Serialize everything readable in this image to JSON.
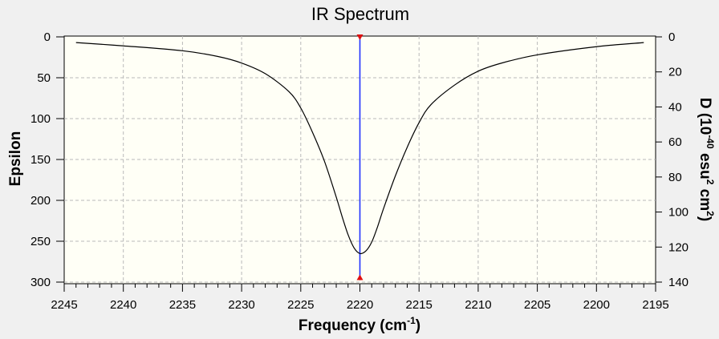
{
  "chart_data": {
    "type": "line",
    "title": "IR Spectrum",
    "xlabel": "Frequency (cm",
    "xlabel_sup": "-1",
    "xlabel_tail": ")",
    "ylabel": "Epsilon",
    "y2label_parts": [
      "D (10",
      "-40",
      " esu",
      "2",
      " cm",
      "2",
      ")"
    ],
    "xlim": [
      2245,
      2195
    ],
    "ylim": [
      0,
      300
    ],
    "y2lim": [
      0,
      140
    ],
    "x_ticks": [
      2245,
      2240,
      2235,
      2230,
      2225,
      2220,
      2215,
      2210,
      2205,
      2200,
      2195
    ],
    "y_ticks": [
      0,
      50,
      100,
      150,
      200,
      250,
      300
    ],
    "y2_ticks": [
      0,
      20,
      40,
      60,
      80,
      100,
      120,
      140
    ],
    "y_inverted": true,
    "grid": true,
    "series": [
      {
        "x": [
          2244,
          2240,
          2235,
          2232,
          2230,
          2228,
          2226,
          2225,
          2224,
          2223,
          2222,
          2221.5,
          2221,
          2220.5,
          2220,
          2219.5,
          2219,
          2218.5,
          2218,
          2217,
          2216,
          2215,
          2214,
          2212,
          2210,
          2208,
          2205,
          2200,
          2196
        ],
        "y": [
          7,
          11,
          17,
          24,
          32,
          45,
          67,
          87,
          117,
          152,
          196,
          220,
          242,
          258,
          265,
          262,
          251,
          232,
          210,
          170,
          135,
          105,
          83,
          59,
          42,
          32,
          22,
          12,
          7
        ]
      }
    ],
    "sticks": [
      {
        "x": 2220,
        "d": 137
      }
    ]
  }
}
